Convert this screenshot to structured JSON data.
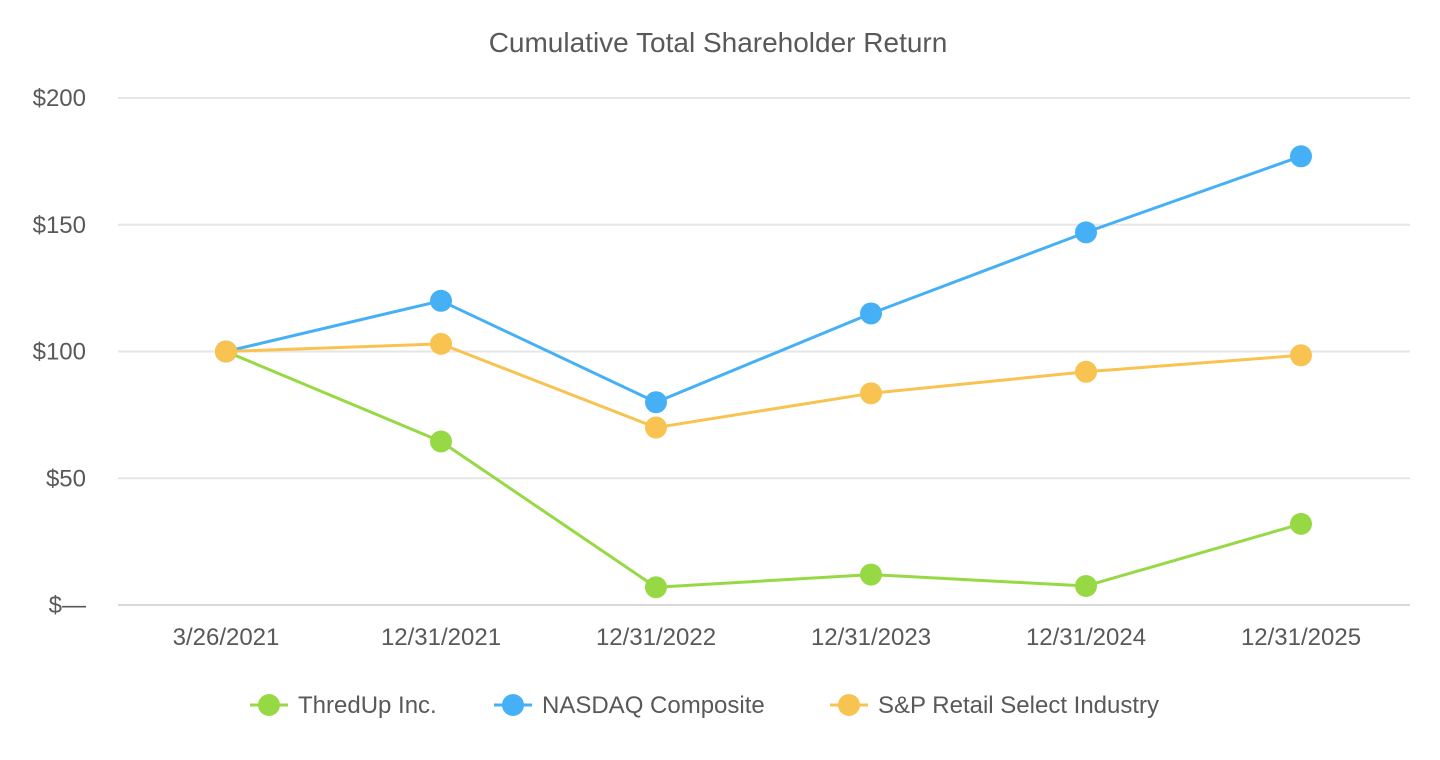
{
  "chart_data": {
    "type": "line",
    "title": "Cumulative Total Shareholder Return",
    "xlabel": "",
    "ylabel": "",
    "categories": [
      "3/26/2021",
      "12/31/2021",
      "12/31/2022",
      "12/31/2023",
      "12/31/2024",
      "12/31/2025"
    ],
    "ylim": [
      0,
      200
    ],
    "yticks": [
      {
        "value": 0,
        "label": "$—"
      },
      {
        "value": 50,
        "label": "$50"
      },
      {
        "value": 100,
        "label": "$100"
      },
      {
        "value": 150,
        "label": "$150"
      },
      {
        "value": 200,
        "label": "$200"
      }
    ],
    "grid": true,
    "legend_position": "bottom-center",
    "series": [
      {
        "name": "ThredUp Inc.",
        "color": "#97d945",
        "values": [
          100,
          64.5,
          7,
          12,
          7.5,
          32
        ]
      },
      {
        "name": "NASDAQ Composite",
        "color": "#45b0f5",
        "values": [
          100,
          120,
          80,
          115,
          147,
          177
        ]
      },
      {
        "name": "S&P Retail Select Industry",
        "color": "#f8c350",
        "values": [
          100,
          103,
          70,
          83.5,
          92,
          98.5
        ]
      }
    ]
  }
}
